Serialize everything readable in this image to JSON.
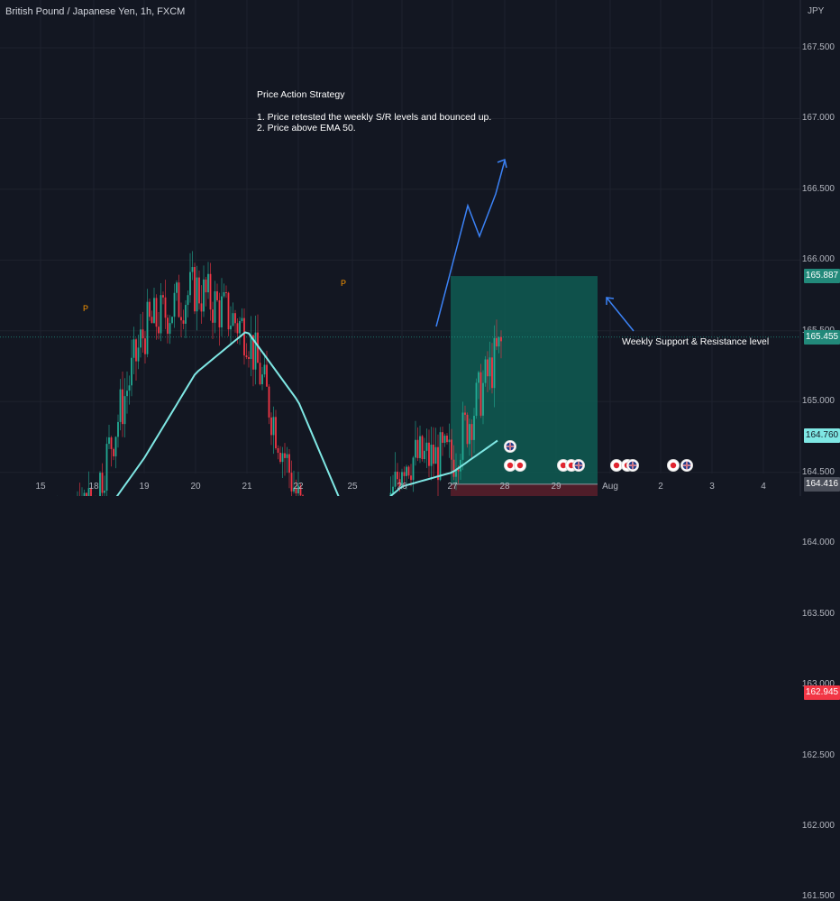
{
  "header": {
    "title": "British Pound / Japanese Yen, 1h, FXCM",
    "currency": "JPY"
  },
  "annotation": {
    "heading": "Price Action Strategy",
    "line1": "1. Price retested the weekly S/R levels and bounced up.",
    "line2": "2. Price above EMA 50.",
    "weekly_label": "Weekly Support & Resistance level",
    "pivot_marker": "P"
  },
  "price_badges": [
    {
      "price": "165.887",
      "bg": "#22897a",
      "fg": "#ffffff",
      "name": "target-price-badge"
    },
    {
      "price": "165.455",
      "bg": "#22897a",
      "fg": "#ffffff",
      "name": "last-price-badge"
    },
    {
      "price": "164.760",
      "bg": "#7fe7e4",
      "fg": "#131722",
      "name": "ema-price-badge"
    },
    {
      "price": "164.416",
      "bg": "#4a4e59",
      "fg": "#ffffff",
      "name": "entry-price-badge"
    },
    {
      "price": "162.945",
      "bg": "#f23645",
      "fg": "#ffffff",
      "name": "stop-price-badge"
    }
  ],
  "colors": {
    "up": "#22ab94",
    "down": "#f23645",
    "ema": "#7fe7e4",
    "support_line": "#ff9800",
    "target_zone": "#0f5c52",
    "stop_zone": "#5a1e2a",
    "arrow": "#3b82f6",
    "background": "#131722",
    "grid": "#1e222d"
  },
  "event_icons": [
    "uk-flag-icon",
    "target-event-icon"
  ],
  "chart_data": {
    "type": "candlestick",
    "timeframe": "1h",
    "x_axis_ticks": [
      "15",
      "18",
      "19",
      "20",
      "21",
      "22",
      "25",
      "26",
      "27",
      "28",
      "29",
      "Aug",
      "2",
      "3",
      "4"
    ],
    "y_axis_ticks": [
      "167.500",
      "167.000",
      "166.500",
      "166.000",
      "165.500",
      "165.000",
      "164.500",
      "164.000",
      "163.500",
      "163.000",
      "162.500",
      "162.000",
      "161.500"
    ],
    "ylim": [
      161.45,
      168.1
    ],
    "series": [
      {
        "name": "Close",
        "key_points": [
          {
            "x": "15",
            "y": 163.9
          },
          {
            "x": "18",
            "y": 164.3
          },
          {
            "x": "19",
            "y": 165.5
          },
          {
            "x": "20",
            "y": 165.8
          },
          {
            "x": "21",
            "y": 165.5
          },
          {
            "x": "22",
            "y": 164.3
          },
          {
            "x": "25",
            "y": 163.1
          },
          {
            "x": "26",
            "y": 164.6
          },
          {
            "x": "27",
            "y": 164.6
          },
          {
            "x": "28",
            "y": 165.455
          }
        ]
      },
      {
        "name": "EMA 50",
        "key_points": [
          {
            "x": "15",
            "y": 163.2
          },
          {
            "x": "18",
            "y": 164.1
          },
          {
            "x": "19",
            "y": 164.6
          },
          {
            "x": "20",
            "y": 165.2
          },
          {
            "x": "21",
            "y": 165.5
          },
          {
            "x": "22",
            "y": 165.0
          },
          {
            "x": "25",
            "y": 164.1
          },
          {
            "x": "26",
            "y": 164.4
          },
          {
            "x": "27",
            "y": 164.5
          },
          {
            "x": "28",
            "y": 164.76
          }
        ]
      }
    ],
    "levels": {
      "weekly_support_resistance": 164.15,
      "pivot_left": 163.78,
      "lower_line": 163.0,
      "entry": 164.416,
      "target": 165.887,
      "stop": 162.945
    },
    "grid": true,
    "legend": "none"
  }
}
